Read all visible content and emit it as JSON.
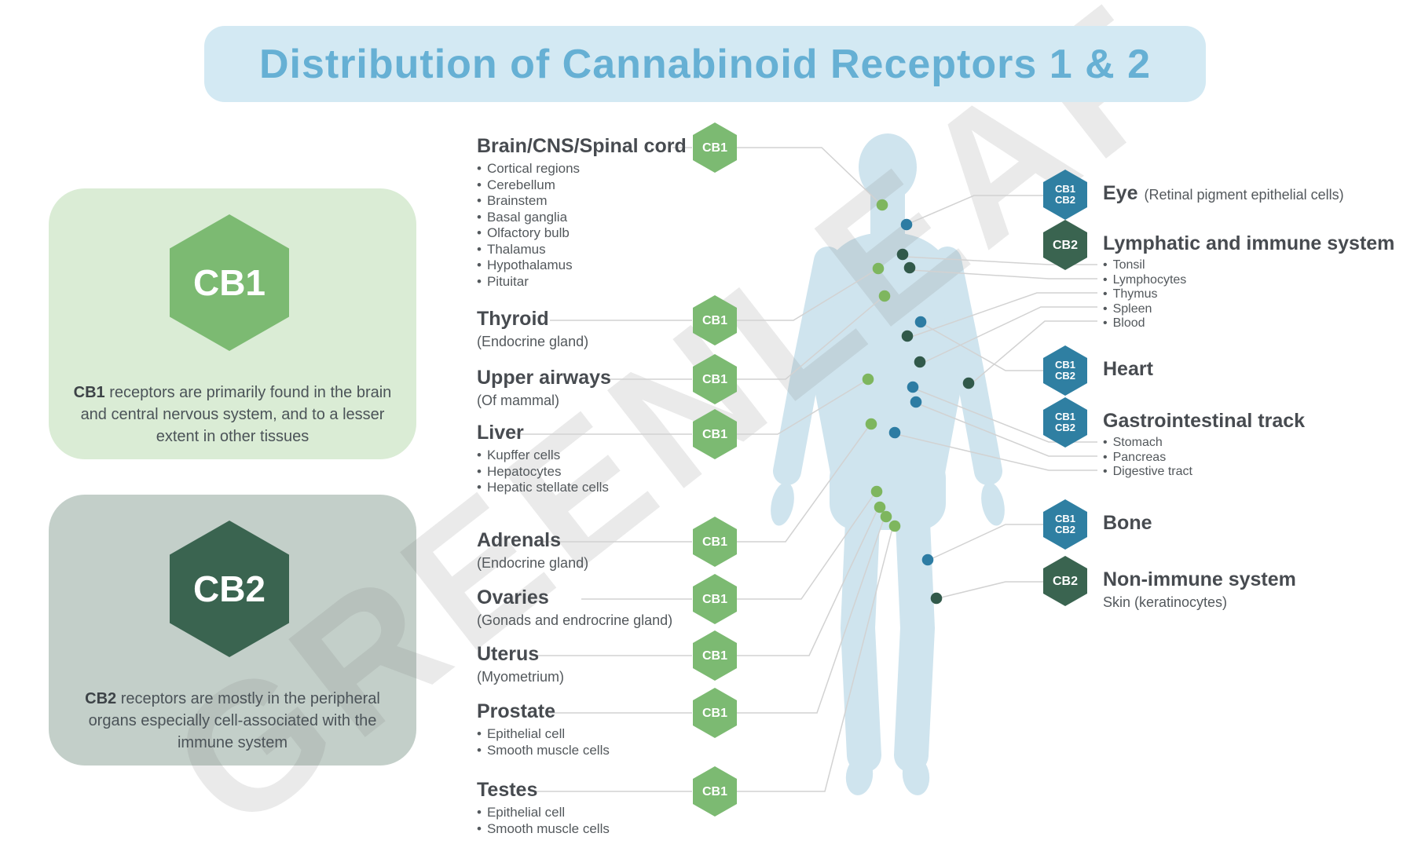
{
  "title": "Distribution of Cannabinoid Receptors 1 & 2",
  "watermark": "GREENLEAF",
  "cards": {
    "cb1": {
      "badge": "CB1",
      "lead": "CB1",
      "text": " receptors are primarily found in the brain and central nervous system, and to a lesser extent in other tissues"
    },
    "cb2": {
      "badge": "CB2",
      "lead": "CB2",
      "text": " receptors are mostly in the peripheral organs especially cell-associated with the immune system"
    }
  },
  "left_organs": [
    {
      "name": "Brain/CNS/Spinal cord",
      "receptors": [
        "CB1"
      ],
      "bullets": [
        "Cortical regions",
        "Cerebellum",
        "Brainstem",
        "Basal ganglia",
        "Olfactory bulb",
        "Thalamus",
        "Hypothalamus",
        "Pituitar"
      ]
    },
    {
      "name": "Thyroid",
      "sub": "(Endocrine gland)",
      "receptors": [
        "CB1"
      ]
    },
    {
      "name": "Upper airways",
      "sub": "(Of mammal)",
      "receptors": [
        "CB1"
      ]
    },
    {
      "name": "Liver",
      "receptors": [
        "CB1"
      ],
      "bullets": [
        "Kupffer cells",
        "Hepatocytes",
        "Hepatic stellate cells"
      ]
    },
    {
      "name": "Adrenals",
      "sub": "(Endocrine gland)",
      "receptors": [
        "CB1"
      ]
    },
    {
      "name": "Ovaries",
      "sub": "(Gonads and endrocrine gland)",
      "receptors": [
        "CB1"
      ]
    },
    {
      "name": "Uterus",
      "sub": "(Myometrium)",
      "receptors": [
        "CB1"
      ]
    },
    {
      "name": "Prostate",
      "receptors": [
        "CB1"
      ],
      "bullets": [
        "Epithelial cell",
        "Smooth muscle cells"
      ]
    },
    {
      "name": "Testes",
      "receptors": [
        "CB1"
      ],
      "bullets": [
        "Epithelial cell",
        "Smooth muscle cells"
      ]
    }
  ],
  "right_organs": [
    {
      "name": "Eye",
      "inline_sub": "(Retinal pigment epithelial cells)",
      "receptors": [
        "CB1",
        "CB2"
      ]
    },
    {
      "name": "Lymphatic and immune system",
      "receptors": [
        "CB2"
      ],
      "bullets": [
        "Tonsil",
        "Lymphocytes",
        "Thymus",
        "Spleen",
        "Blood"
      ]
    },
    {
      "name": "Heart",
      "receptors": [
        "CB1",
        "CB2"
      ]
    },
    {
      "name": "Gastrointestinal track",
      "receptors": [
        "CB1",
        "CB2"
      ],
      "bullets": [
        "Stomach",
        "Pancreas",
        "Digestive tract"
      ]
    },
    {
      "name": "Bone",
      "receptors": [
        "CB1",
        "CB2"
      ]
    },
    {
      "name": "Non-immune system",
      "sub": "Skin (keratinocytes)",
      "receptors": [
        "CB2"
      ]
    }
  ],
  "colors": {
    "cb1_green": "#7cba72",
    "cb2_dark_green": "#3a6450",
    "cb1cb2_teal": "#2f7fa2",
    "dot_green": "#7eb65e",
    "dot_blue": "#2d7ca3",
    "dot_dark_green": "#31594a",
    "body_blue": "#cfe4ee",
    "title_blue": "#66b0d4",
    "title_bg": "#d3e9f3",
    "connector_line": "#d2d2d2"
  }
}
